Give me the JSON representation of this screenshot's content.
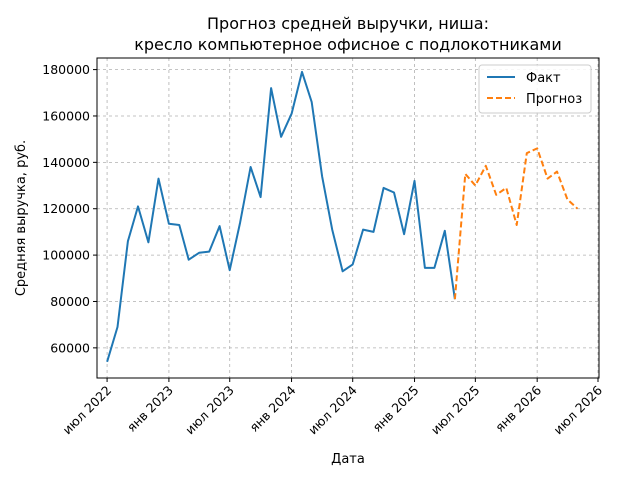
{
  "chart_data": {
    "type": "line",
    "title": "Прогноз средней выручки, ниша:",
    "subtitle": "кресло компьютерное офисное с подлокотниками",
    "xlabel": "Дата",
    "ylabel": "Средняя выручка, руб.",
    "ylim": [
      47000,
      185000
    ],
    "xlim": [
      "2022-06-01",
      "2026-07-04"
    ],
    "y_ticks": [
      60000,
      80000,
      100000,
      120000,
      140000,
      160000,
      180000
    ],
    "x_ticks": [
      {
        "date": "2022-07-01",
        "label": "июл 2022"
      },
      {
        "date": "2023-01-01",
        "label": "янв 2023"
      },
      {
        "date": "2023-07-01",
        "label": "июл 2023"
      },
      {
        "date": "2024-01-01",
        "label": "янв 2024"
      },
      {
        "date": "2024-07-01",
        "label": "июл 2024"
      },
      {
        "date": "2025-01-01",
        "label": "янв 2025"
      },
      {
        "date": "2025-07-01",
        "label": "июл 2025"
      },
      {
        "date": "2026-01-01",
        "label": "янв 2026"
      },
      {
        "date": "2026-07-01",
        "label": "июл 2026"
      }
    ],
    "grid": true,
    "legend_position": "top-right",
    "series": [
      {
        "name": "Факт",
        "color": "#1f77b4",
        "style": "solid",
        "x": [
          "2022-07-01",
          "2022-08-01",
          "2022-09-01",
          "2022-10-01",
          "2022-11-01",
          "2022-12-01",
          "2023-01-01",
          "2023-02-01",
          "2023-03-01",
          "2023-04-01",
          "2023-05-01",
          "2023-06-01",
          "2023-07-01",
          "2023-08-01",
          "2023-09-01",
          "2023-10-01",
          "2023-11-01",
          "2023-12-01",
          "2024-01-01",
          "2024-02-01",
          "2024-03-01",
          "2024-04-01",
          "2024-05-01",
          "2024-06-01",
          "2024-07-01",
          "2024-08-01",
          "2024-09-01",
          "2024-10-01",
          "2024-11-01",
          "2024-12-01",
          "2025-01-01",
          "2025-02-01",
          "2025-03-01",
          "2025-04-01",
          "2025-05-01"
        ],
        "values": [
          54000,
          69000,
          106000,
          121000,
          105500,
          133000,
          113500,
          113000,
          98000,
          101000,
          101500,
          112500,
          93500,
          114000,
          138000,
          125000,
          172000,
          151000,
          161000,
          179000,
          166000,
          134000,
          111000,
          93000,
          96000,
          111000,
          110000,
          129000,
          127000,
          109000,
          132000,
          94500,
          94500,
          110500,
          81000
        ]
      },
      {
        "name": "Прогноз",
        "color": "#ff7f0e",
        "style": "dashed",
        "x": [
          "2025-05-01",
          "2025-06-01",
          "2025-07-01",
          "2025-08-01",
          "2025-09-01",
          "2025-10-01",
          "2025-11-01",
          "2025-12-01",
          "2026-01-01",
          "2026-02-01",
          "2026-03-01",
          "2026-04-01",
          "2026-05-01"
        ],
        "values": [
          81000,
          135000,
          130000,
          138500,
          126000,
          129000,
          113000,
          144000,
          146000,
          133000,
          136000,
          124000,
          120000
        ]
      }
    ]
  }
}
